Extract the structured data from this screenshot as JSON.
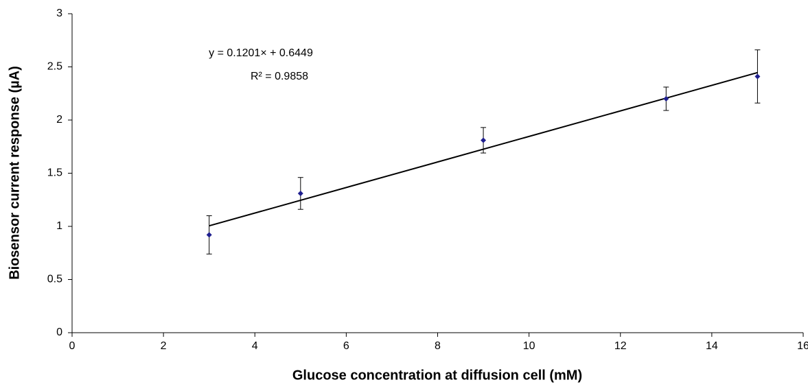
{
  "chart_data": {
    "type": "scatter",
    "xlabel": "Glucose concentration at diffusion cell (mM)",
    "ylabel": "Biosensor current response (µA)",
    "x": [
      3,
      5,
      9,
      13,
      15
    ],
    "values": [
      0.92,
      1.31,
      1.81,
      2.2,
      2.41
    ],
    "errors": [
      0.18,
      0.15,
      0.12,
      0.11,
      0.25
    ],
    "color": "#1f1f8f",
    "xlim": [
      0,
      16
    ],
    "xticks": [
      0,
      2,
      4,
      6,
      8,
      10,
      12,
      14,
      16
    ],
    "ylim": [
      0,
      3
    ],
    "yticks": [
      0,
      0.5,
      1,
      1.5,
      2,
      2.5,
      3
    ],
    "trendline": {
      "slope": 0.1201,
      "intercept": 0.6449,
      "equation": "y = 0.1201× + 0.6449",
      "r_squared": "R² = 0.9858"
    }
  }
}
